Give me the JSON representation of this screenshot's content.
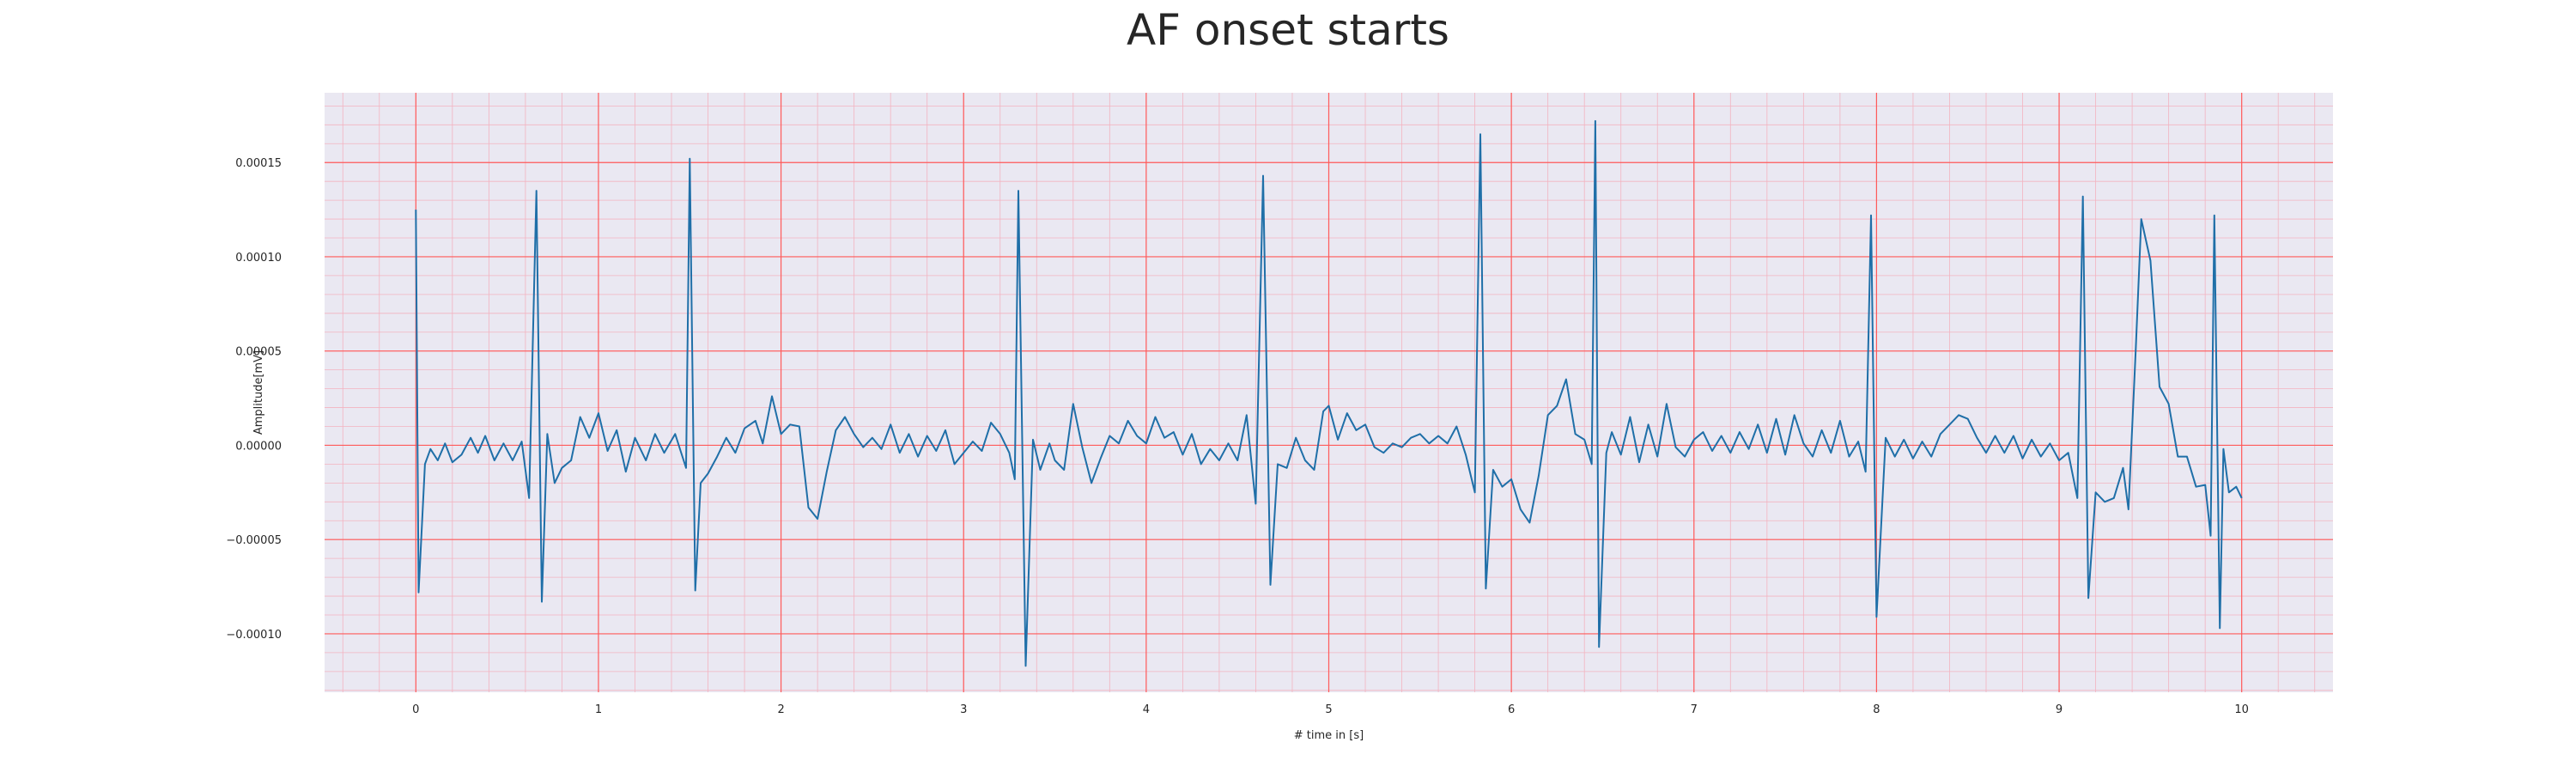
{
  "chart_data": {
    "type": "line",
    "title": "AF onset starts",
    "xlabel": "# time in [s]",
    "ylabel": "Amplitude[mV]",
    "xlim": [
      -0.5,
      10.5
    ],
    "ylim": [
      -0.000131,
      0.000187
    ],
    "x_ticks": [
      0,
      1,
      2,
      3,
      4,
      5,
      6,
      7,
      8,
      9,
      10
    ],
    "y_ticks": [
      -0.0001,
      -5e-05,
      0.0,
      5e-05,
      0.0001,
      0.00015
    ],
    "y_tick_labels": [
      "−0.00010",
      "−0.00005",
      "0.00000",
      "0.00005",
      "0.00010",
      "0.00015"
    ],
    "grid": {
      "major": true,
      "minor": true,
      "major_color": "#ff5a5a",
      "minor_color": "#f3b3c0"
    },
    "colors": {
      "line": "#1f6fa8",
      "background": "#eae8f2"
    },
    "series": [
      {
        "values": [
          [
            0.0,
            0.000125
          ],
          [
            0.015,
            -7.8e-05
          ],
          [
            0.05,
            -1e-05
          ],
          [
            0.08,
            -2e-06
          ],
          [
            0.12,
            -8e-06
          ],
          [
            0.16,
            1e-06
          ],
          [
            0.2,
            -9e-06
          ],
          [
            0.25,
            -5e-06
          ],
          [
            0.3,
            4e-06
          ],
          [
            0.34,
            -4e-06
          ],
          [
            0.38,
            5e-06
          ],
          [
            0.43,
            -8e-06
          ],
          [
            0.48,
            1e-06
          ],
          [
            0.53,
            -8e-06
          ],
          [
            0.58,
            2e-06
          ],
          [
            0.62,
            -2.8e-05
          ],
          [
            0.66,
            0.000135
          ],
          [
            0.69,
            -8.3e-05
          ],
          [
            0.72,
            6e-06
          ],
          [
            0.76,
            -2e-05
          ],
          [
            0.8,
            -1.2e-05
          ],
          [
            0.85,
            -8e-06
          ],
          [
            0.9,
            1.5e-05
          ],
          [
            0.95,
            4e-06
          ],
          [
            1.0,
            1.7e-05
          ],
          [
            1.05,
            -3e-06
          ],
          [
            1.1,
            8e-06
          ],
          [
            1.15,
            -1.4e-05
          ],
          [
            1.2,
            4e-06
          ],
          [
            1.26,
            -8e-06
          ],
          [
            1.31,
            6e-06
          ],
          [
            1.36,
            -4e-06
          ],
          [
            1.42,
            6e-06
          ],
          [
            1.45,
            -3e-06
          ],
          [
            1.48,
            -1.2e-05
          ],
          [
            1.5,
            0.000152
          ],
          [
            1.53,
            -7.7e-05
          ],
          [
            1.56,
            -2e-05
          ],
          [
            1.6,
            -1.5e-05
          ],
          [
            1.65,
            -6e-06
          ],
          [
            1.7,
            4e-06
          ],
          [
            1.75,
            -4e-06
          ],
          [
            1.8,
            9e-06
          ],
          [
            1.86,
            1.3e-05
          ],
          [
            1.9,
            1e-06
          ],
          [
            1.95,
            2.6e-05
          ],
          [
            2.0,
            6e-06
          ],
          [
            2.05,
            1.1e-05
          ],
          [
            2.1,
            1e-05
          ],
          [
            2.15,
            -3.3e-05
          ],
          [
            2.2,
            -3.9e-05
          ],
          [
            2.25,
            -1.4e-05
          ],
          [
            2.3,
            8e-06
          ],
          [
            2.35,
            1.5e-05
          ],
          [
            2.4,
            6e-06
          ],
          [
            2.45,
            -1e-06
          ],
          [
            2.5,
            4e-06
          ],
          [
            2.55,
            -2e-06
          ],
          [
            2.6,
            1.1e-05
          ],
          [
            2.65,
            -4e-06
          ],
          [
            2.7,
            6e-06
          ],
          [
            2.75,
            -6e-06
          ],
          [
            2.8,
            5e-06
          ],
          [
            2.85,
            -3e-06
          ],
          [
            2.9,
            8e-06
          ],
          [
            2.95,
            -1e-05
          ],
          [
            3.0,
            -4e-06
          ],
          [
            3.05,
            2e-06
          ],
          [
            3.1,
            -3e-06
          ],
          [
            3.15,
            1.2e-05
          ],
          [
            3.2,
            6e-06
          ],
          [
            3.25,
            -4e-06
          ],
          [
            3.28,
            -1.8e-05
          ],
          [
            3.3,
            0.000135
          ],
          [
            3.34,
            -0.000117
          ],
          [
            3.38,
            3e-06
          ],
          [
            3.42,
            -1.3e-05
          ],
          [
            3.47,
            1e-06
          ],
          [
            3.5,
            -8e-06
          ],
          [
            3.55,
            -1.3e-05
          ],
          [
            3.6,
            2.2e-05
          ],
          [
            3.65,
            -1e-06
          ],
          [
            3.7,
            -2e-05
          ],
          [
            3.75,
            -7e-06
          ],
          [
            3.8,
            5e-06
          ],
          [
            3.85,
            1e-06
          ],
          [
            3.9,
            1.3e-05
          ],
          [
            3.95,
            5e-06
          ],
          [
            4.0,
            1e-06
          ],
          [
            4.05,
            1.5e-05
          ],
          [
            4.1,
            4e-06
          ],
          [
            4.15,
            7e-06
          ],
          [
            4.2,
            -5e-06
          ],
          [
            4.25,
            6e-06
          ],
          [
            4.3,
            -1e-05
          ],
          [
            4.35,
            -2e-06
          ],
          [
            4.4,
            -8e-06
          ],
          [
            4.45,
            1e-06
          ],
          [
            4.5,
            -8e-06
          ],
          [
            4.55,
            1.6e-05
          ],
          [
            4.6,
            -3.1e-05
          ],
          [
            4.64,
            0.000143
          ],
          [
            4.68,
            -7.4e-05
          ],
          [
            4.72,
            -1e-05
          ],
          [
            4.77,
            -1.2e-05
          ],
          [
            4.82,
            4e-06
          ],
          [
            4.87,
            -8e-06
          ],
          [
            4.92,
            -1.3e-05
          ],
          [
            4.97,
            1.8e-05
          ],
          [
            5.0,
            2.1e-05
          ],
          [
            5.05,
            3e-06
          ],
          [
            5.1,
            1.7e-05
          ],
          [
            5.15,
            8e-06
          ],
          [
            5.2,
            1.1e-05
          ],
          [
            5.25,
            -1e-06
          ],
          [
            5.3,
            -4e-06
          ],
          [
            5.35,
            1e-06
          ],
          [
            5.4,
            -1e-06
          ],
          [
            5.45,
            4e-06
          ],
          [
            5.5,
            6e-06
          ],
          [
            5.55,
            1e-06
          ],
          [
            5.6,
            5e-06
          ],
          [
            5.65,
            1e-06
          ],
          [
            5.7,
            1e-05
          ],
          [
            5.75,
            -5e-06
          ],
          [
            5.8,
            -2.5e-05
          ],
          [
            5.83,
            0.000165
          ],
          [
            5.86,
            -7.6e-05
          ],
          [
            5.9,
            -1.3e-05
          ],
          [
            5.95,
            -2.2e-05
          ],
          [
            6.0,
            -1.8e-05
          ],
          [
            6.05,
            -3.4e-05
          ],
          [
            6.1,
            -4.1e-05
          ],
          [
            6.15,
            -1.6e-05
          ],
          [
            6.2,
            1.6e-05
          ],
          [
            6.25,
            2.1e-05
          ],
          [
            6.3,
            3.5e-05
          ],
          [
            6.35,
            6e-06
          ],
          [
            6.4,
            3e-06
          ],
          [
            6.44,
            -1e-05
          ],
          [
            6.46,
            0.000172
          ],
          [
            6.48,
            -0.000107
          ],
          [
            6.52,
            -4e-06
          ],
          [
            6.55,
            7e-06
          ],
          [
            6.6,
            -5e-06
          ],
          [
            6.65,
            1.5e-05
          ],
          [
            6.7,
            -9e-06
          ],
          [
            6.75,
            1.1e-05
          ],
          [
            6.8,
            -6e-06
          ],
          [
            6.85,
            2.2e-05
          ],
          [
            6.9,
            -1e-06
          ],
          [
            6.95,
            -6e-06
          ],
          [
            7.0,
            3e-06
          ],
          [
            7.05,
            7e-06
          ],
          [
            7.1,
            -3e-06
          ],
          [
            7.15,
            5e-06
          ],
          [
            7.2,
            -4e-06
          ],
          [
            7.25,
            7e-06
          ],
          [
            7.3,
            -2e-06
          ],
          [
            7.35,
            1.1e-05
          ],
          [
            7.4,
            -4e-06
          ],
          [
            7.45,
            1.4e-05
          ],
          [
            7.5,
            -5e-06
          ],
          [
            7.55,
            1.6e-05
          ],
          [
            7.6,
            1e-06
          ],
          [
            7.65,
            -6e-06
          ],
          [
            7.7,
            8e-06
          ],
          [
            7.75,
            -4e-06
          ],
          [
            7.8,
            1.3e-05
          ],
          [
            7.85,
            -6e-06
          ],
          [
            7.9,
            2e-06
          ],
          [
            7.94,
            -1.4e-05
          ],
          [
            7.97,
            0.000122
          ],
          [
            8.0,
            -9.1e-05
          ],
          [
            8.05,
            4e-06
          ],
          [
            8.1,
            -6e-06
          ],
          [
            8.15,
            3e-06
          ],
          [
            8.2,
            -7e-06
          ],
          [
            8.25,
            2e-06
          ],
          [
            8.3,
            -6e-06
          ],
          [
            8.35,
            6e-06
          ],
          [
            8.4,
            1.1e-05
          ],
          [
            8.45,
            1.6e-05
          ],
          [
            8.5,
            1.4e-05
          ],
          [
            8.55,
            4e-06
          ],
          [
            8.6,
            -4e-06
          ],
          [
            8.65,
            5e-06
          ],
          [
            8.7,
            -4e-06
          ],
          [
            8.75,
            5e-06
          ],
          [
            8.8,
            -7e-06
          ],
          [
            8.85,
            3e-06
          ],
          [
            8.9,
            -6e-06
          ],
          [
            8.95,
            1e-06
          ],
          [
            9.0,
            -8e-06
          ],
          [
            9.05,
            -4e-06
          ],
          [
            9.1,
            -2.8e-05
          ],
          [
            9.13,
            0.000132
          ],
          [
            9.16,
            -8.1e-05
          ],
          [
            9.2,
            -2.5e-05
          ],
          [
            9.25,
            -3e-05
          ],
          [
            9.3,
            -2.8e-05
          ],
          [
            9.35,
            -1.2e-05
          ],
          [
            9.38,
            -3.4e-05
          ],
          [
            9.42,
            5.2e-05
          ],
          [
            9.45,
            0.00012
          ],
          [
            9.5,
            9.8e-05
          ],
          [
            9.55,
            3.1e-05
          ],
          [
            9.6,
            2.2e-05
          ],
          [
            9.65,
            -6e-06
          ],
          [
            9.7,
            -6e-06
          ],
          [
            9.75,
            -2.2e-05
          ],
          [
            9.8,
            -2.1e-05
          ],
          [
            9.83,
            -4.8e-05
          ],
          [
            9.85,
            0.000122
          ],
          [
            9.88,
            -9.7e-05
          ],
          [
            9.9,
            -2e-06
          ],
          [
            9.93,
            -2.5e-05
          ],
          [
            9.97,
            -2.2e-05
          ],
          [
            10.0,
            -2.8e-05
          ]
        ]
      }
    ]
  }
}
